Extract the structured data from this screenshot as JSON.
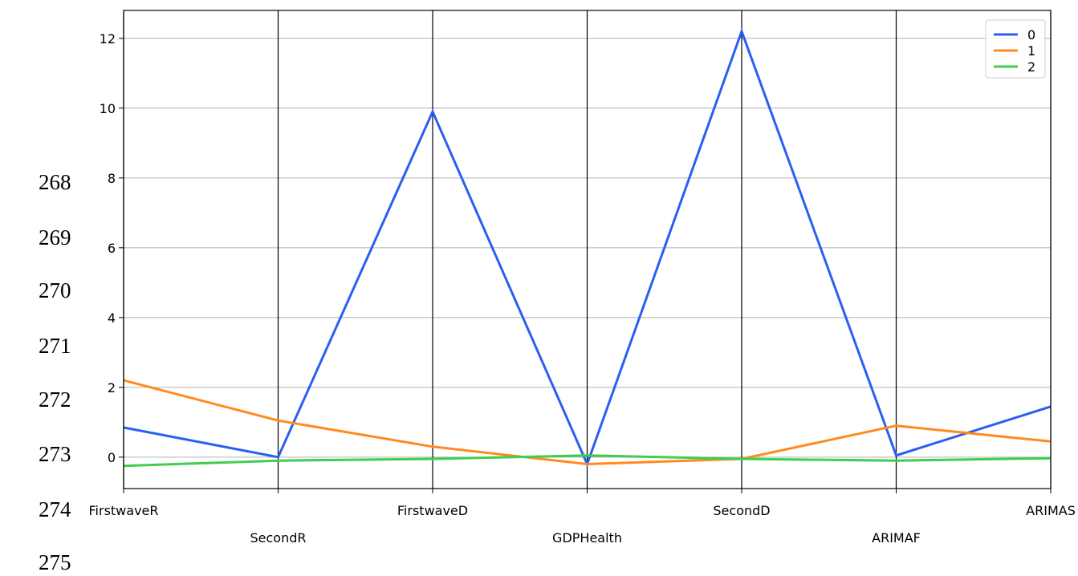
{
  "line_numbers": [
    "268",
    "269",
    "270",
    "271",
    "272",
    "273",
    "274",
    "275"
  ],
  "chart_data": {
    "type": "line",
    "subtype": "parallel-coordinates",
    "title": "",
    "xlabel": "",
    "ylabel": "",
    "categories": [
      "FirstwaveR",
      "SecondR",
      "FirstwaveD",
      "GDPHealth",
      "SecondD",
      "ARIMAF",
      "ARIMAS"
    ],
    "ylim": [
      -0.9,
      12.8
    ],
    "yticks": [
      0,
      2,
      4,
      6,
      8,
      10,
      12
    ],
    "grid": "horizontal",
    "vertical_axis_lines": true,
    "legend_position": "top-right",
    "series": [
      {
        "name": "0",
        "color": "#2b5ef2",
        "values": [
          0.85,
          0.0,
          9.9,
          -0.2,
          12.2,
          0.05,
          1.45
        ]
      },
      {
        "name": "1",
        "color": "#ff8a1f",
        "values": [
          2.2,
          1.05,
          0.3,
          -0.2,
          -0.05,
          0.9,
          0.45
        ]
      },
      {
        "name": "2",
        "color": "#3fce4f",
        "values": [
          -0.25,
          -0.1,
          -0.05,
          0.05,
          -0.05,
          -0.1,
          -0.03
        ]
      }
    ]
  }
}
